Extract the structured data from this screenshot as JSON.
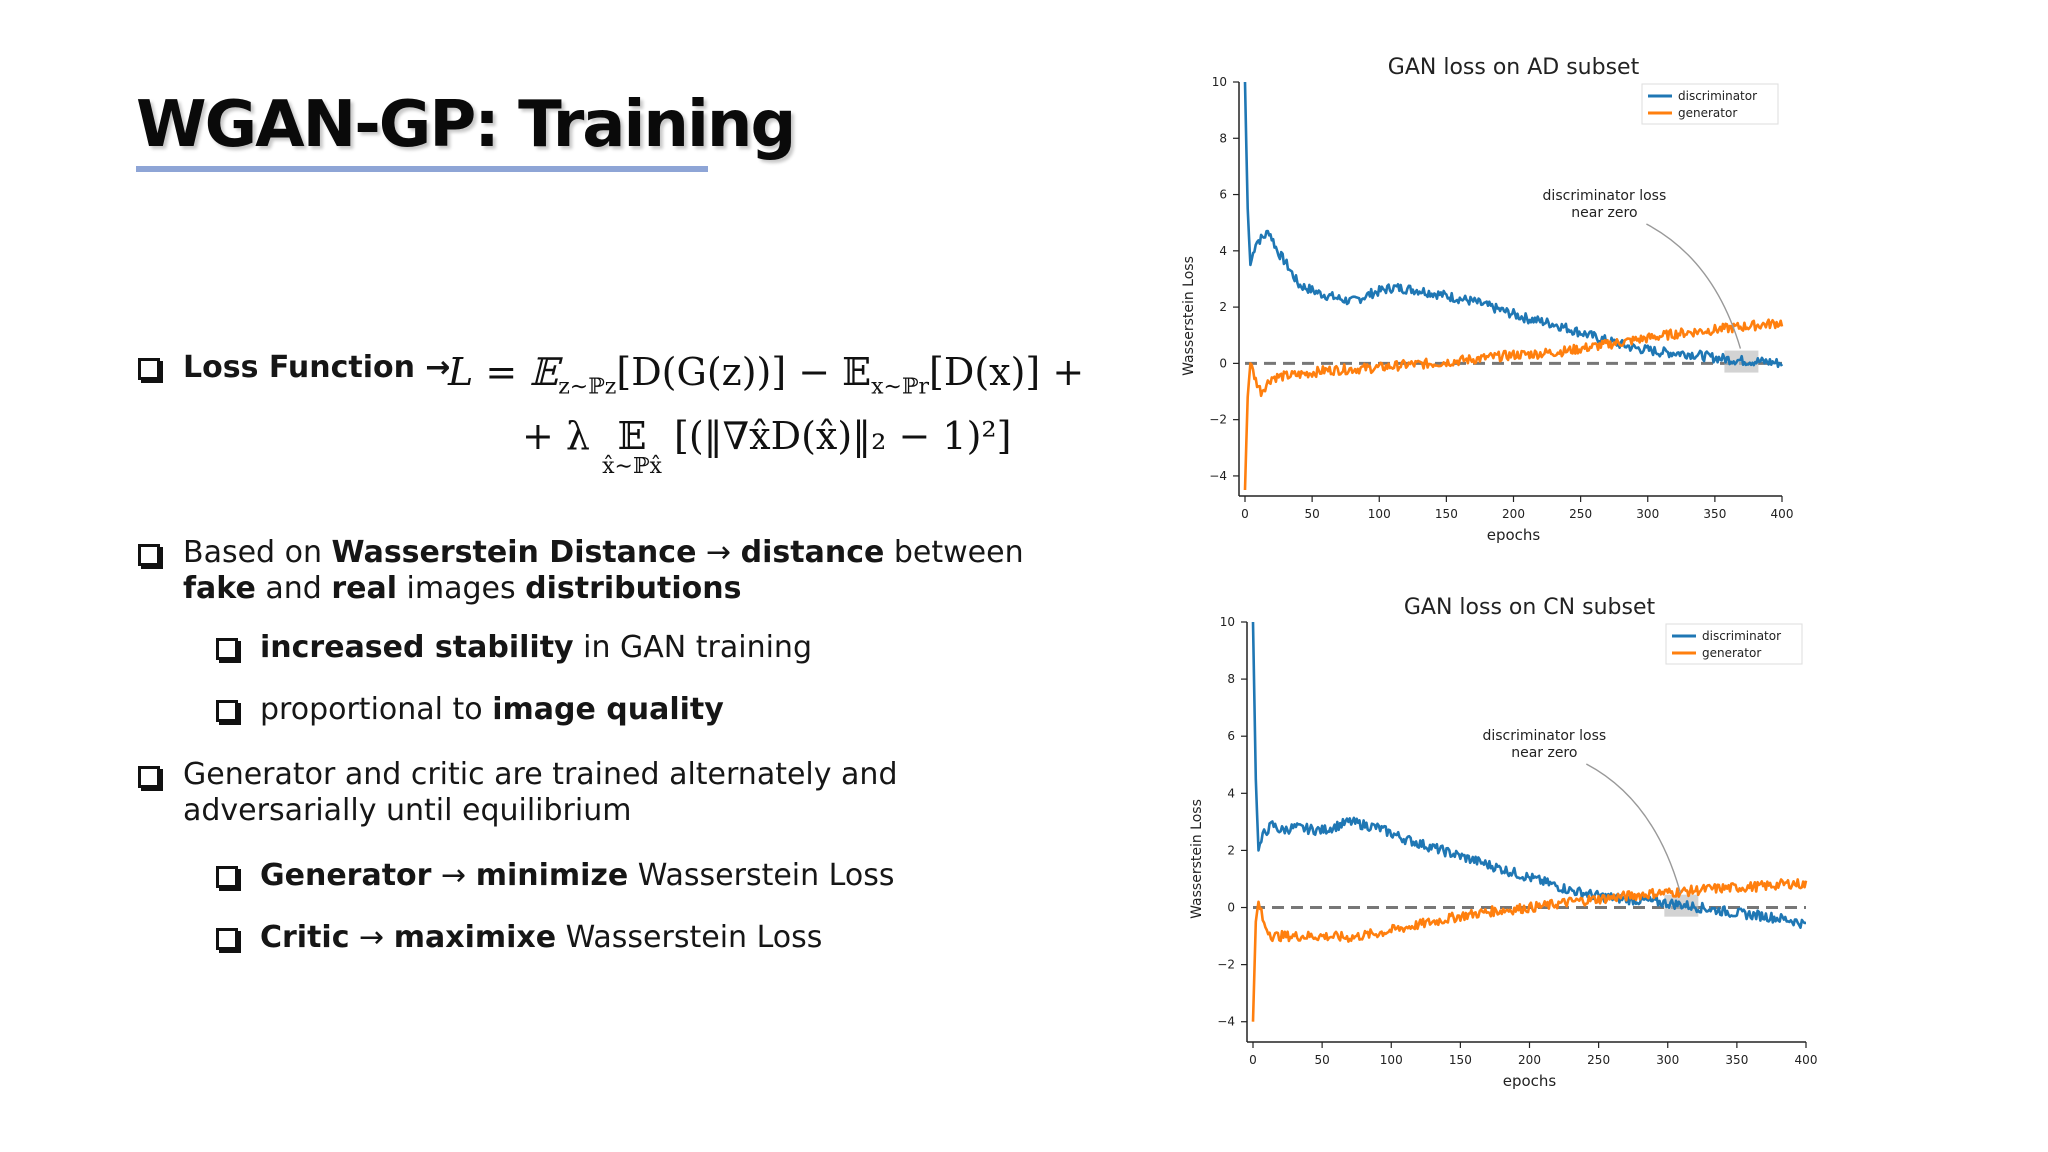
{
  "slide": {
    "title": "WGAN-GP: Training"
  },
  "bullets": {
    "loss": {
      "label": "Loss Function →"
    },
    "formula": {
      "line1": "L = 𝔼",
      "line1_sub1": "z∼ℙz",
      "line1_mid": "[D(G(z))] − 𝔼",
      "line1_sub2": "x∼ℙr",
      "line1_end": "[D(x)] +",
      "line2_start": "+ λ",
      "line2_op": "𝔼",
      "line2_under": "x̂∼ℙx̂",
      "line2_body": "[(‖∇x̂D(x̂)‖₂ − 1)²]"
    },
    "wasserstein": {
      "t1": "Based on ",
      "t2": "Wasserstein Distance",
      "t3": " → ",
      "t4": "distance",
      "t5": " between",
      "t6": "fake",
      "t7": " and ",
      "t8": "real",
      "t9": " images ",
      "t10": "distributions"
    },
    "stability": {
      "b": "increased stability",
      "t": " in GAN training"
    },
    "quality": {
      "t": "proportional to ",
      "b": "image quality"
    },
    "alternate": {
      "line1": "Generator and critic are trained alternately and",
      "line2": "adversarially until equilibrium"
    },
    "generator": {
      "b1": "Generator",
      "t1": " → ",
      "b2": "minimize",
      "t2": " Wasserstein Loss"
    },
    "critic": {
      "b1": "Critic",
      "t1": " → ",
      "b2": "maximixe",
      "t2": " Wasserstein Loss"
    }
  },
  "chart_data": [
    {
      "type": "line",
      "title": "GAN loss on AD subset",
      "xlabel": "epochs",
      "ylabel": "Wasserstein Loss",
      "xlim": [
        0,
        400
      ],
      "ylim": [
        -4.5,
        10
      ],
      "xticks": [
        "0",
        "50",
        "100",
        "150",
        "200",
        "250",
        "300",
        "350",
        "400"
      ],
      "yticks": [
        "10",
        "8",
        "6",
        "4",
        "2",
        "0",
        "−2",
        "−4"
      ],
      "legend_position": "top-right",
      "grid": false,
      "hline_y": 0,
      "annotation": {
        "line1": "discriminator loss",
        "line2": "near zero",
        "point": [
          372,
          0.1
        ]
      },
      "series": [
        {
          "name": "discriminator",
          "color": "#1f77b4",
          "points": [
            [
              0,
              10
            ],
            [
              2,
              5.5
            ],
            [
              4,
              3.5
            ],
            [
              8,
              4.3
            ],
            [
              14,
              4.5
            ],
            [
              18,
              4.7
            ],
            [
              24,
              4.0
            ],
            [
              30,
              3.6
            ],
            [
              40,
              2.8
            ],
            [
              55,
              2.5
            ],
            [
              70,
              2.3
            ],
            [
              80,
              2.2
            ],
            [
              95,
              2.5
            ],
            [
              110,
              2.7
            ],
            [
              130,
              2.6
            ],
            [
              150,
              2.4
            ],
            [
              170,
              2.2
            ],
            [
              190,
              1.9
            ],
            [
              210,
              1.6
            ],
            [
              230,
              1.4
            ],
            [
              250,
              1.1
            ],
            [
              270,
              0.8
            ],
            [
              290,
              0.55
            ],
            [
              310,
              0.4
            ],
            [
              330,
              0.35
            ],
            [
              350,
              0.2
            ],
            [
              370,
              0.1
            ],
            [
              390,
              0.05
            ],
            [
              400,
              0.0
            ]
          ]
        },
        {
          "name": "generator",
          "color": "#ff7f0e",
          "points": [
            [
              0,
              -4.5
            ],
            [
              2,
              -1.2
            ],
            [
              4,
              0.0
            ],
            [
              8,
              -0.6
            ],
            [
              12,
              -1.0
            ],
            [
              20,
              -0.5
            ],
            [
              40,
              -0.4
            ],
            [
              60,
              -0.25
            ],
            [
              80,
              -0.2
            ],
            [
              100,
              -0.15
            ],
            [
              120,
              -0.05
            ],
            [
              140,
              0.0
            ],
            [
              160,
              0.1
            ],
            [
              180,
              0.2
            ],
            [
              200,
              0.3
            ],
            [
              220,
              0.35
            ],
            [
              240,
              0.45
            ],
            [
              260,
              0.6
            ],
            [
              280,
              0.75
            ],
            [
              300,
              0.9
            ],
            [
              320,
              1.05
            ],
            [
              340,
              1.15
            ],
            [
              360,
              1.25
            ],
            [
              380,
              1.35
            ],
            [
              400,
              1.45
            ]
          ]
        }
      ]
    },
    {
      "type": "line",
      "title": "GAN loss on CN subset",
      "xlabel": "epochs",
      "ylabel": "Wasserstein Loss",
      "xlim": [
        0,
        400
      ],
      "ylim": [
        -4.5,
        10
      ],
      "xticks": [
        "0",
        "50",
        "100",
        "150",
        "200",
        "250",
        "300",
        "350",
        "400"
      ],
      "yticks": [
        "10",
        "8",
        "6",
        "4",
        "2",
        "0",
        "−2",
        "−4"
      ],
      "legend_position": "top-right",
      "grid": false,
      "hline_y": 0,
      "annotation": {
        "line1": "discriminator loss",
        "line2": "near zero",
        "point": [
          312,
          0.1
        ]
      },
      "series": [
        {
          "name": "discriminator",
          "color": "#1f77b4",
          "points": [
            [
              0,
              10
            ],
            [
              2,
              4.5
            ],
            [
              4,
              2.0
            ],
            [
              8,
              2.6
            ],
            [
              14,
              2.9
            ],
            [
              20,
              2.7
            ],
            [
              30,
              2.8
            ],
            [
              50,
              2.7
            ],
            [
              70,
              3.0
            ],
            [
              90,
              2.8
            ],
            [
              110,
              2.4
            ],
            [
              130,
              2.1
            ],
            [
              150,
              1.8
            ],
            [
              170,
              1.5
            ],
            [
              190,
              1.2
            ],
            [
              210,
              0.9
            ],
            [
              230,
              0.6
            ],
            [
              250,
              0.4
            ],
            [
              270,
              0.3
            ],
            [
              290,
              0.2
            ],
            [
              310,
              0.1
            ],
            [
              330,
              -0.05
            ],
            [
              350,
              -0.2
            ],
            [
              370,
              -0.3
            ],
            [
              390,
              -0.45
            ],
            [
              400,
              -0.6
            ]
          ]
        },
        {
          "name": "generator",
          "color": "#ff7f0e",
          "points": [
            [
              0,
              -4.0
            ],
            [
              2,
              -0.5
            ],
            [
              4,
              0.2
            ],
            [
              8,
              -0.6
            ],
            [
              14,
              -1.0
            ],
            [
              30,
              -1.0
            ],
            [
              50,
              -1.0
            ],
            [
              70,
              -1.05
            ],
            [
              90,
              -0.9
            ],
            [
              110,
              -0.7
            ],
            [
              130,
              -0.5
            ],
            [
              150,
              -0.3
            ],
            [
              170,
              -0.15
            ],
            [
              190,
              -0.05
            ],
            [
              210,
              0.05
            ],
            [
              230,
              0.2
            ],
            [
              250,
              0.3
            ],
            [
              270,
              0.4
            ],
            [
              290,
              0.5
            ],
            [
              310,
              0.55
            ],
            [
              330,
              0.65
            ],
            [
              350,
              0.7
            ],
            [
              370,
              0.75
            ],
            [
              390,
              0.85
            ],
            [
              400,
              0.8
            ]
          ]
        }
      ]
    }
  ]
}
